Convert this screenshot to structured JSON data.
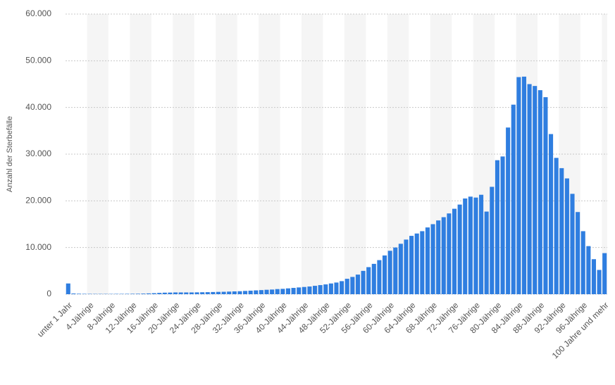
{
  "chart_data": {
    "type": "bar",
    "y_label": "Anzahl der Sterbefälle",
    "categories": [
      "unter 1 Jahr",
      null,
      null,
      null,
      "4-Jährige",
      null,
      null,
      null,
      "8-Jährige",
      null,
      null,
      null,
      "12-Jährige",
      null,
      null,
      null,
      "16-Jährige",
      null,
      null,
      null,
      "20-Jährige",
      null,
      null,
      null,
      "24-Jährige",
      null,
      null,
      null,
      "28-Jährige",
      null,
      null,
      null,
      "32-Jährige",
      null,
      null,
      null,
      "36-Jährige",
      null,
      null,
      null,
      "40-Jährige",
      null,
      null,
      null,
      "44-Jährige",
      null,
      null,
      null,
      "48-Jährige",
      null,
      null,
      null,
      "52-Jährige",
      null,
      null,
      null,
      "56-Jährige",
      null,
      null,
      null,
      "60-Jährige",
      null,
      null,
      null,
      "64-Jährige",
      null,
      null,
      null,
      "68-Jährige",
      null,
      null,
      null,
      "72-Jährige",
      null,
      null,
      null,
      "76-Jährige",
      null,
      null,
      null,
      "80-Jährige",
      null,
      null,
      null,
      "84-Jährige",
      null,
      null,
      null,
      "88-Jährige",
      null,
      null,
      null,
      "92-Jährige",
      null,
      null,
      null,
      "96-Jährige",
      null,
      null,
      null,
      "100 Jahre und mehr"
    ],
    "values": [
      2300,
      150,
      100,
      80,
      70,
      60,
      60,
      60,
      60,
      70,
      70,
      80,
      90,
      100,
      130,
      170,
      220,
      280,
      330,
      350,
      380,
      380,
      380,
      380,
      400,
      420,
      440,
      470,
      500,
      520,
      560,
      600,
      640,
      700,
      760,
      820,
      880,
      950,
      1000,
      1100,
      1150,
      1250,
      1350,
      1450,
      1550,
      1650,
      1800,
      1950,
      2100,
      2300,
      2500,
      2800,
      3300,
      3700,
      4200,
      5000,
      5800,
      6500,
      7300,
      8300,
      9300,
      10000,
      10800,
      11700,
      12500,
      13000,
      13500,
      14300,
      15000,
      15800,
      16500,
      17300,
      18300,
      19200,
      20500,
      20900,
      20700,
      21300,
      17700,
      23000,
      28700,
      29500,
      35700,
      40600,
      46500,
      46600,
      45000,
      44600,
      43700,
      42200,
      34300,
      29200,
      27000,
      24800,
      21500,
      17600,
      13500,
      10300,
      7500,
      5200,
      8800
    ],
    "color": "#2f7ee0",
    "ylim": [
      0,
      60000
    ],
    "yticks": [
      0,
      {
        "value": 10000,
        "label": "10.000"
      },
      {
        "value": 20000,
        "label": "20.000"
      },
      {
        "value": 30000,
        "label": "30.000"
      },
      {
        "value": 40000,
        "label": "40.000"
      },
      {
        "value": 50000,
        "label": "50.000"
      },
      {
        "value": 60000,
        "label": "60.000"
      }
    ],
    "grid": true
  }
}
